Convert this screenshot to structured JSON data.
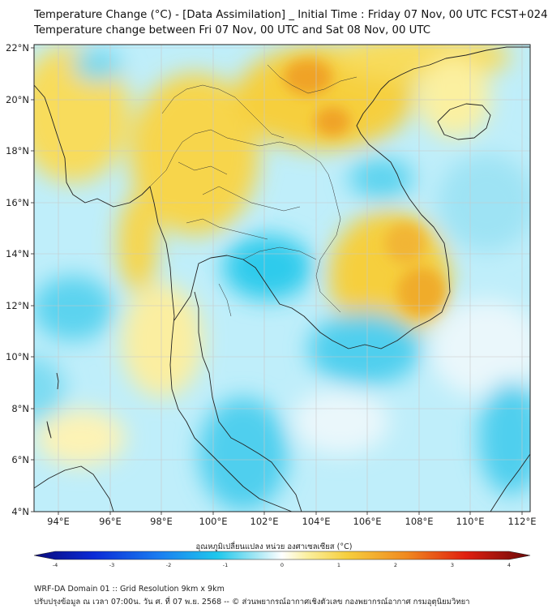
{
  "header": {
    "title_line1": "Temperature Change (°C) - [Data Assimilation] _ Initial Time : Friday 07 Nov, 00 UTC FCST+024",
    "title_line2": "Temperature change between Fri 07 Nov, 00 UTC and Sat 08 Nov, 00 UTC"
  },
  "map": {
    "lat_labels": [
      "22°N",
      "20°N",
      "18°N",
      "16°N",
      "14°N",
      "12°N",
      "10°N",
      "8°N",
      "6°N",
      "4°N"
    ],
    "lon_labels": [
      "94°E",
      "96°E",
      "98°E",
      "100°E",
      "102°E",
      "104°E",
      "106°E",
      "108°E",
      "110°E",
      "112°E"
    ],
    "colors": {
      "cooling_strong": "#1fc8ec",
      "cooling_light": "#a8e8f5",
      "neutral": "#ffffff",
      "warming_light": "#fbf0a0",
      "warming": "#f6cf3e",
      "warming_strong": "#f0a325",
      "coastline": "#222222"
    }
  },
  "colorbar": {
    "label": "อุณหภูมิเปลี่ยนแปลง หน่วย องศาเซลเซียส (°C)",
    "ticks": [
      "-4",
      "-3",
      "-2",
      "-1",
      "0",
      "1",
      "2",
      "3",
      "4"
    ],
    "min": -4,
    "max": 4
  },
  "footer": {
    "line1": "WRF-DA Domain 01 :: Grid Resolution 9km x 9km",
    "line2": "ปรับปรุงข้อมูล ณ เวลา 07:00น. วัน ศ. ที่ 07 พ.ย. 2568 -- © ส่วนพยากรณ์อากาศเชิงตัวเลข กองพยากรณ์อากาศ กรมอุตุนิยมวิทยา"
  }
}
